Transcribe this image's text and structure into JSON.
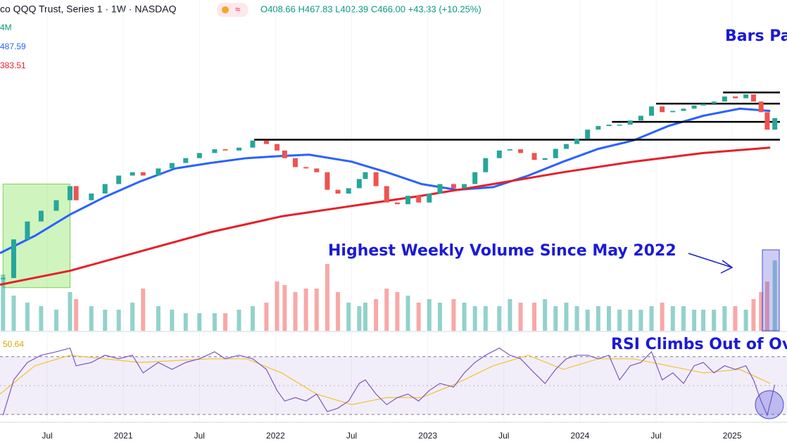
{
  "chart_data": {
    "type": "candlestick",
    "title": "co QQQ Trust, Series 1 · 1W · NASDAQ",
    "ohlc_text": "O408.66 H467.83 L402.39 C466.00 +43.33 (+10.25%)",
    "annotations": [
      "Bars Pa",
      "Highest Weekly Volume Since May 2022",
      "RSI Climbs Out of Ov"
    ],
    "log_scale": true,
    "ylim": [
      120,
      990
    ],
    "xlim": [
      2020.19,
      2025.36
    ],
    "xticks": [
      {
        "value": 2020.5,
        "label": "Jul"
      },
      2021,
      {
        "value": 2021.5,
        "label": "Jul"
      },
      2022,
      {
        "value": 2022.5,
        "label": "Jul"
      },
      2023,
      {
        "value": 2023.5,
        "label": "Jul"
      },
      2024,
      {
        "value": 2024.5,
        "label": "Jul"
      },
      2025
    ],
    "up_color": "#26a69a",
    "down_color": "#ef5350",
    "x": [
      2020.21,
      2020.28,
      2020.37,
      2020.46,
      2020.56,
      2020.65,
      2020.69,
      2020.79,
      2020.88,
      2020.97,
      2021.06,
      2021.13,
      2021.23,
      2021.32,
      2021.41,
      2021.5,
      2021.6,
      2021.67,
      2021.76,
      2021.85,
      2021.94,
      2022.01,
      2022.06,
      2022.13,
      2022.2,
      2022.27,
      2022.34,
      2022.41,
      2022.48,
      2022.55,
      2022.59,
      2022.66,
      2022.73,
      2022.8,
      2022.87,
      2022.94,
      2023.01,
      2023.08,
      2023.17,
      2023.24,
      2023.31,
      2023.38,
      2023.47,
      2023.54,
      2023.61,
      2023.7,
      2023.77,
      2023.84,
      2023.91,
      2023.98,
      2024.05,
      2024.12,
      2024.19,
      2024.26,
      2024.33,
      2024.4,
      2024.47,
      2024.54,
      2024.61,
      2024.68,
      2024.75,
      2024.81,
      2024.88,
      2024.95,
      2025.02,
      2025.09,
      2025.14,
      2025.19,
      2025.23,
      2025.28
    ],
    "close": [
      168,
      215,
      241,
      258,
      276,
      302,
      276,
      288,
      306,
      323,
      330,
      323,
      338,
      350,
      361,
      373,
      382,
      379,
      386,
      404,
      395,
      379,
      361,
      341,
      338,
      330,
      295,
      288,
      298,
      316,
      330,
      302,
      272,
      269,
      284,
      272,
      288,
      306,
      298,
      306,
      330,
      361,
      379,
      382,
      373,
      357,
      361,
      383,
      395,
      408,
      433,
      443,
      447,
      447,
      459,
      473,
      502,
      484,
      488,
      495,
      505,
      511,
      518,
      535,
      529,
      542,
      518,
      484,
      433,
      466
    ],
    "moving_averages": [
      {
        "label": "487.59",
        "color": "#2962ff",
        "x": [
          2020.19,
          2020.42,
          2020.65,
          2020.88,
          2021.11,
          2021.34,
          2021.57,
          2021.81,
          2022.04,
          2022.22,
          2022.5,
          2022.73,
          2022.96,
          2023.19,
          2023.43,
          2023.66,
          2023.89,
          2024.12,
          2024.35,
          2024.58,
          2024.81,
          2025.05,
          2025.25
        ],
        "values": [
          197,
          220,
          252,
          282,
          311,
          338,
          350,
          361,
          366,
          369,
          353,
          330,
          306,
          295,
          300,
          323,
          353,
          383,
          404,
          443,
          473,
          495,
          488
        ]
      },
      {
        "label": "383.51",
        "color": "#e5202a",
        "x": [
          2020.19,
          2020.65,
          2021.11,
          2021.57,
          2022.04,
          2022.5,
          2022.96,
          2023.43,
          2023.89,
          2024.35,
          2024.81,
          2025.25
        ],
        "values": [
          161,
          176,
          199,
          225,
          249,
          266,
          284,
          306,
          330,
          353,
          373,
          386
        ]
      }
    ],
    "levels": [
      {
        "value": 549,
        "start": 2024.94
      },
      {
        "value": 511,
        "start": 2024.5
      },
      {
        "value": 455,
        "start": 2024.21
      },
      {
        "value": 406,
        "start": 2021.86
      }
    ],
    "highlight": {
      "x": [
        2020.21,
        2020.65
      ],
      "y": [
        158,
        306
      ]
    },
    "volume": {
      "label": "4M",
      "ylim": [
        0,
        600
      ],
      "values": [
        400,
        250,
        200,
        175,
        150,
        275,
        225,
        175,
        150,
        150,
        200,
        300,
        175,
        150,
        125,
        125,
        125,
        125,
        150,
        175,
        200,
        350,
        325,
        275,
        300,
        300,
        475,
        275,
        200,
        175,
        200,
        225,
        300,
        275,
        250,
        200,
        225,
        200,
        225,
        200,
        175,
        175,
        175,
        225,
        200,
        200,
        225,
        175,
        200,
        175,
        150,
        175,
        175,
        150,
        150,
        150,
        175,
        200,
        175,
        175,
        150,
        150,
        150,
        175,
        175,
        150,
        225,
        275,
        350,
        500
      ]
    },
    "rsi": {
      "label": "50.64",
      "color": "#7e57c2",
      "ma_color": "#f2c230",
      "ylim": [
        24.6,
        84
      ],
      "bands": [
        30,
        70
      ],
      "values": [
        29.5,
        53.9,
        66,
        71,
        73.4,
        75.9,
        63.7,
        66,
        71,
        68.5,
        71,
        58.8,
        66,
        61.2,
        66,
        68.5,
        73.4,
        68.5,
        71,
        68.5,
        61.2,
        46.6,
        39.3,
        41.7,
        39.3,
        44.1,
        32,
        34.4,
        39.3,
        51.5,
        53.9,
        44.1,
        36.8,
        41.7,
        44.1,
        39.3,
        46.6,
        51.5,
        49,
        58.8,
        66,
        71,
        75.9,
        71,
        68.5,
        58.8,
        51.5,
        61.2,
        68.5,
        71,
        71,
        68.5,
        71,
        53.9,
        63.7,
        66,
        73.4,
        53.9,
        58.8,
        51.5,
        63.7,
        66,
        58.8,
        63.7,
        61.2,
        63.7,
        53.9,
        39.3,
        29.5,
        50.6
      ],
      "ma_x": [
        2020.19,
        2020.42,
        2020.65,
        2021.11,
        2021.57,
        2021.81,
        2022.04,
        2022.27,
        2022.5,
        2022.73,
        2022.96,
        2023.19,
        2023.43,
        2023.66,
        2023.89,
        2024.12,
        2024.35,
        2024.58,
        2024.81,
        2025.05,
        2025.25
      ],
      "ma_values": [
        44.1,
        63.7,
        71,
        66,
        68.5,
        68.5,
        58.8,
        44.1,
        36.8,
        41.7,
        41.7,
        51.5,
        63.7,
        71,
        61.2,
        68.5,
        68.5,
        63.7,
        58.8,
        61.2,
        51.5
      ]
    }
  }
}
